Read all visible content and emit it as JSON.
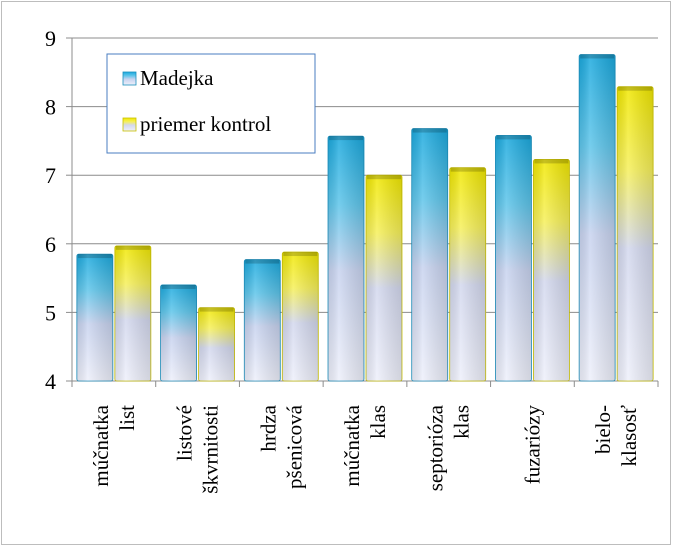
{
  "chart_data": {
    "type": "bar",
    "categories": [
      [
        "múčnatka",
        "list"
      ],
      [
        "listové",
        "škvrnitosti"
      ],
      [
        "hrdza",
        "pšenicová"
      ],
      [
        "múčnatka",
        "klas"
      ],
      [
        "septorióza",
        "klas"
      ],
      [
        "fuzariózy"
      ],
      [
        "bielo-",
        "klasosť"
      ]
    ],
    "series": [
      {
        "name": "Madejka",
        "values": [
          5.85,
          5.4,
          5.77,
          7.57,
          7.68,
          7.58,
          8.76
        ],
        "color": "#1aa7dc"
      },
      {
        "name": "priemer kontrol",
        "values": [
          5.97,
          5.07,
          5.88,
          7.0,
          7.11,
          7.23,
          8.29
        ],
        "color": "#f2ea00"
      }
    ],
    "ylim": [
      4,
      9
    ],
    "yticks": [
      4,
      5,
      6,
      7,
      8,
      9
    ],
    "grid": true,
    "legend": "top-left",
    "title": "",
    "xlabel": "",
    "ylabel": ""
  }
}
